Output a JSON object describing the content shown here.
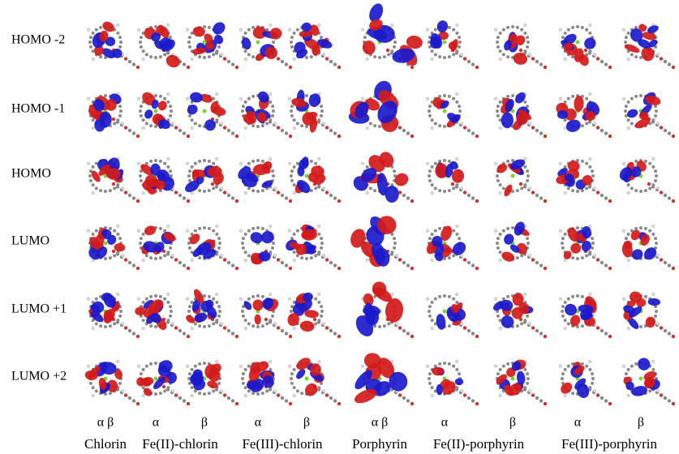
{
  "rows": [
    "HOMO -2",
    "HOMO -1",
    "HOMO",
    "LUMO",
    "LUMO +1",
    "LUMO +2"
  ],
  "columns": [
    {
      "name": "Chlorin",
      "spins": [
        "α β"
      ]
    },
    {
      "name": "Fe(II)-chlorin",
      "spins": [
        "α",
        "β"
      ]
    },
    {
      "name": "Fe(III)-chlorin",
      "spins": [
        "α",
        "β"
      ]
    },
    {
      "name": "Porphyrin",
      "spins": [
        "α β"
      ]
    },
    {
      "name": "Fe(II)-porphyrin",
      "spins": [
        "α",
        "β"
      ]
    },
    {
      "name": "Fe(III)-porphyrin",
      "spins": [
        "α",
        "β"
      ]
    }
  ]
}
